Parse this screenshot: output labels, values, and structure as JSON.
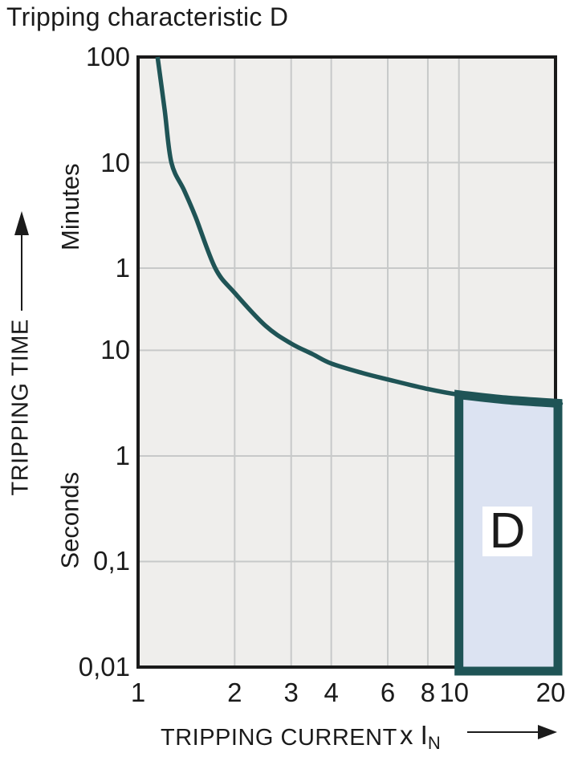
{
  "title": "Tripping characteristic D",
  "colors": {
    "curve": "#1f5456",
    "region_fill": "#dce3f2",
    "region_border": "#1f5456",
    "plot_background": "#efeeec",
    "gridline": "#c7c9c9",
    "plot_border": "#1a1a1a",
    "text": "#1b1b1b",
    "label_box_background": "#ffffff"
  },
  "axes": {
    "y": {
      "name_label": "TRIPPING TIME",
      "unit_groups": [
        {
          "label": "Minutes"
        },
        {
          "label": "Seconds"
        }
      ]
    },
    "x": {
      "name_label": "TRIPPING CURRENT",
      "unit_prefix": "x I",
      "unit_subscript": "N"
    }
  },
  "chart_data": {
    "type": "line",
    "title": "Tripping characteristic D",
    "xlabel": "TRIPPING CURRENT (x IN)",
    "ylabel": "TRIPPING TIME",
    "x_scale": "log",
    "y_scale": "log",
    "x_range": [
      1,
      20
    ],
    "y_range_seconds": [
      0.01,
      6000
    ],
    "grid": true,
    "x_ticks": [
      {
        "value": 1,
        "label": "1",
        "gridline": false
      },
      {
        "value": 2,
        "label": "2",
        "gridline": true
      },
      {
        "value": 3,
        "label": "3",
        "gridline": true
      },
      {
        "value": 4,
        "label": "4",
        "gridline": true
      },
      {
        "value": 6,
        "label": "6",
        "gridline": true
      },
      {
        "value": 8,
        "label": "8",
        "gridline": true
      },
      {
        "value": 10,
        "label": "10",
        "gridline": true
      },
      {
        "value": 20,
        "label": "20",
        "gridline": false
      }
    ],
    "y_ticks": [
      {
        "value_seconds": 6000,
        "label": "100",
        "unit": "minutes",
        "gridline": false
      },
      {
        "value_seconds": 600,
        "label": "10",
        "unit": "minutes",
        "gridline": true
      },
      {
        "value_seconds": 60,
        "label": "1",
        "unit": "minutes",
        "gridline": true
      },
      {
        "value_seconds": 10,
        "label": "10",
        "unit": "seconds",
        "gridline": true
      },
      {
        "value_seconds": 1,
        "label": "1",
        "unit": "seconds",
        "gridline": true
      },
      {
        "value_seconds": 0.1,
        "label": "0,1",
        "unit": "seconds",
        "gridline": true
      },
      {
        "value_seconds": 0.01,
        "label": "0,01",
        "unit": "seconds",
        "gridline": false
      }
    ],
    "series": [
      {
        "name": "tripping-characteristic-D-curve",
        "points_i_t_seconds": [
          [
            1.15,
            6000
          ],
          [
            1.21,
            1900
          ],
          [
            1.27,
            600
          ],
          [
            1.39,
            330
          ],
          [
            1.51,
            184
          ],
          [
            1.74,
            60
          ],
          [
            2.0,
            35
          ],
          [
            2.5,
            17
          ],
          [
            3.0,
            11.6
          ],
          [
            3.5,
            9.2
          ],
          [
            4.0,
            7.5
          ],
          [
            5.0,
            6.1
          ],
          [
            6.0,
            5.3
          ],
          [
            8.0,
            4.3
          ],
          [
            10.0,
            3.8
          ],
          [
            14.0,
            3.4
          ],
          [
            20.0,
            3.15
          ]
        ]
      }
    ],
    "region": {
      "label": "D",
      "i_from": 10,
      "i_to": 20,
      "t_bottom_seconds": 0.01,
      "top_follows_curve": true
    }
  }
}
